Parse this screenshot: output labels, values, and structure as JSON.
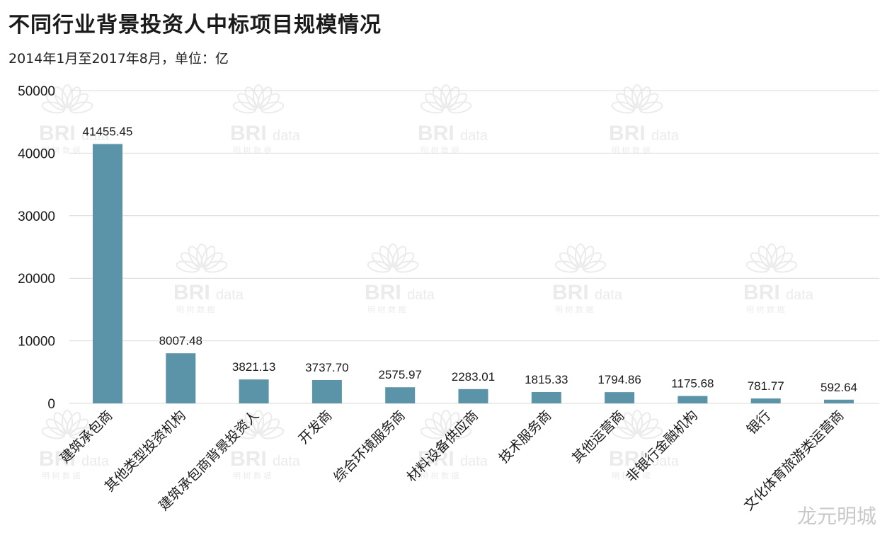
{
  "title": "不同行业背景投资人中标项目规模情况",
  "subtitle": "2014年1月至2017年8月，单位：亿",
  "colors": {
    "bar": "#5b93a9",
    "grid": "#d9d9d9",
    "text": "#1a1a1a",
    "watermark": "#dcdcdc"
  },
  "watermark": {
    "logo_text": "BRI",
    "logo_suffix": "data",
    "logo_caption": "明 树 数 据",
    "corner_text": "龙元明城"
  },
  "chart_data": {
    "type": "bar",
    "title": "不同行业背景投资人中标项目规模情况",
    "subtitle": "2014年1月至2017年8月，单位：亿",
    "xlabel": "",
    "ylabel": "",
    "ylim": [
      0,
      50000
    ],
    "yticks": [
      0,
      10000,
      20000,
      30000,
      40000,
      50000
    ],
    "grid": true,
    "categories": [
      "建筑承包商",
      "其他类型投资机构",
      "建筑承包商背景投资人",
      "开发商",
      "综合环境服务商",
      "材料设备供应商",
      "技术服务商",
      "其他运营商",
      "非银行金融机构",
      "银行",
      "文化体育旅游类运营商"
    ],
    "values": [
      41455.45,
      8007.48,
      3821.13,
      3737.7,
      2575.97,
      2283.01,
      1815.33,
      1794.86,
      1175.68,
      781.77,
      592.64
    ],
    "data_labels": [
      "41455.45",
      "8007.48",
      "3821.13",
      "3737.70",
      "2575.97",
      "2283.01",
      "1815.33",
      "1794.86",
      "1175.68",
      "781.77",
      "592.64"
    ]
  }
}
